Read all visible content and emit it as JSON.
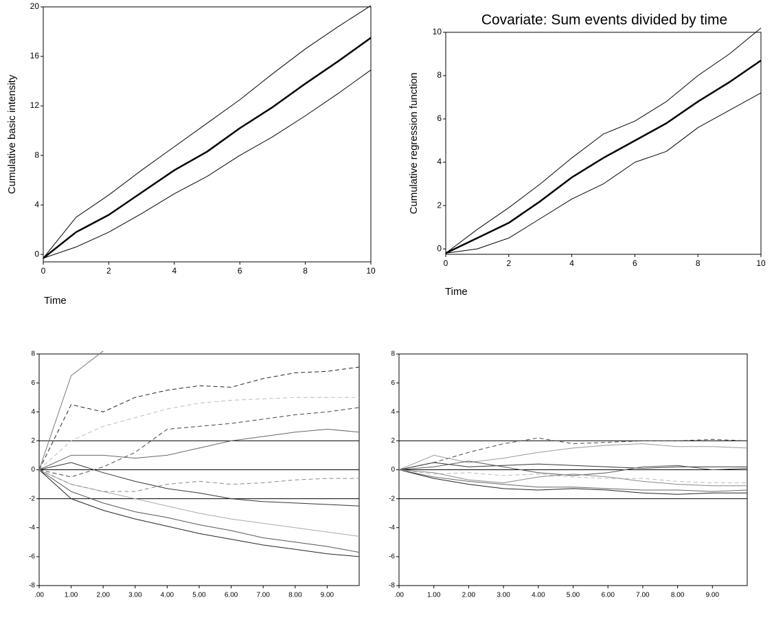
{
  "chart_data": [
    {
      "type": "line",
      "y_label": "Cumulative basic intensity",
      "x_label": "Time",
      "x": [
        0,
        1,
        2,
        3,
        4,
        5,
        6,
        7,
        8,
        9,
        10
      ],
      "xlim": [
        0,
        10
      ],
      "xticks": [
        0,
        2,
        4,
        6,
        8,
        10
      ],
      "ylim": [
        -0.6,
        20
      ],
      "yticks": [
        0,
        4,
        8,
        12,
        16,
        20
      ],
      "series": [
        {
          "color": "#000000",
          "width": 2.5,
          "values": [
            -0.3,
            1.8,
            3.2,
            5.0,
            6.8,
            8.3,
            10.2,
            11.9,
            13.8,
            15.6,
            17.5
          ]
        },
        {
          "color": "#000000",
          "width": 1,
          "values": [
            -0.3,
            3.0,
            4.8,
            6.8,
            8.7,
            10.6,
            12.5,
            14.6,
            16.6,
            18.4,
            20.1
          ]
        },
        {
          "color": "#000000",
          "width": 1,
          "values": [
            -0.3,
            0.6,
            1.8,
            3.3,
            4.9,
            6.3,
            8.0,
            9.5,
            11.2,
            13.0,
            14.9
          ]
        }
      ]
    },
    {
      "type": "line",
      "title": "Covariate: Sum events divided by time",
      "y_label": "Cumulative regression function",
      "x_label": "Time",
      "x": [
        0,
        1,
        2,
        3,
        4,
        5,
        6,
        7,
        8,
        9,
        10
      ],
      "xlim": [
        0,
        10
      ],
      "xticks": [
        0,
        2,
        4,
        6,
        8,
        10
      ],
      "ylim": [
        -0.25,
        10
      ],
      "yticks": [
        0,
        2,
        4,
        6,
        8,
        10
      ],
      "series": [
        {
          "color": "#000000",
          "width": 2.5,
          "values": [
            -0.2,
            0.5,
            1.2,
            2.2,
            3.3,
            4.2,
            5.0,
            5.8,
            6.8,
            7.7,
            8.7
          ]
        },
        {
          "color": "#000000",
          "width": 1,
          "values": [
            -0.2,
            0.9,
            1.9,
            3.0,
            4.2,
            5.3,
            5.9,
            6.8,
            8.0,
            9.0,
            10.2
          ]
        },
        {
          "color": "#000000",
          "width": 1,
          "values": [
            -0.2,
            0.0,
            0.5,
            1.4,
            2.3,
            3.0,
            4.0,
            4.5,
            5.6,
            6.4,
            7.2
          ]
        }
      ]
    },
    {
      "type": "line",
      "x": [
        0,
        1,
        2,
        3,
        4,
        5,
        6,
        7,
        8,
        9,
        10
      ],
      "xlim": [
        0,
        10
      ],
      "xticks": [
        {
          "value": 0,
          "label": ".00"
        },
        {
          "value": 1,
          "label": "1.00"
        },
        {
          "value": 2,
          "label": "2.00"
        },
        {
          "value": 3,
          "label": "3.00"
        },
        {
          "value": 4,
          "label": "4.00"
        },
        {
          "value": 5,
          "label": "5.00"
        },
        {
          "value": 6,
          "label": "6.00"
        },
        {
          "value": 7,
          "label": "7.00"
        },
        {
          "value": 8,
          "label": "8.00"
        },
        {
          "value": 9,
          "label": "9.00"
        }
      ],
      "ylim": [
        -8,
        8
      ],
      "yticks": [
        8,
        6,
        4,
        2,
        0,
        -2,
        -4,
        -6,
        -8
      ],
      "hlines": [
        2,
        0,
        -2
      ],
      "series": [
        {
          "color": "#222222",
          "width": 1,
          "values": [
            0,
            -2,
            -2.8,
            -3.4,
            -3.9,
            -4.4,
            -4.8,
            -5.2,
            -5.5,
            -5.8,
            -6.0
          ]
        },
        {
          "color": "#555555",
          "width": 1,
          "values": [
            0,
            -1.5,
            -2.3,
            -2.9,
            -3.3,
            -3.8,
            -4.2,
            -4.7,
            -5.0,
            -5.3,
            -5.7
          ]
        },
        {
          "color": "#aaaaaa",
          "width": 1,
          "values": [
            0,
            -1,
            -1.5,
            -2,
            -2.5,
            -3,
            -3.4,
            -3.7,
            -4,
            -4.3,
            -4.6
          ]
        },
        {
          "color": "#333333",
          "width": 1,
          "values": [
            0,
            0.5,
            -0.2,
            -0.8,
            -1.3,
            -1.6,
            -2.0,
            -2.2,
            -2.3,
            -2.4,
            -2.5
          ]
        },
        {
          "color": "#bbbbbb",
          "width": 1,
          "dash": true,
          "values": [
            0,
            2,
            3,
            3.6,
            4.2,
            4.6,
            4.8,
            4.9,
            5,
            5,
            5
          ]
        },
        {
          "color": "#222222",
          "width": 1,
          "dash": true,
          "values": [
            0,
            4.5,
            4,
            5,
            5.5,
            5.8,
            5.7,
            6.3,
            6.7,
            6.8,
            7.1
          ]
        },
        {
          "color": "#666666",
          "width": 1,
          "values": [
            0,
            1,
            1,
            0.8,
            1,
            1.5,
            2,
            2.3,
            2.6,
            2.8,
            2.6
          ]
        },
        {
          "color": "#777777",
          "width": 1,
          "values": [
            0,
            6.5,
            8.2,
            null,
            null,
            null,
            null,
            null,
            null,
            null,
            null
          ]
        },
        {
          "color": "#444444",
          "width": 1,
          "dash": true,
          "values": [
            0,
            -0.5,
            0.2,
            1.2,
            2.8,
            3.0,
            3.2,
            3.5,
            3.8,
            4.0,
            4.3
          ]
        },
        {
          "color": "#888888",
          "width": 1,
          "dash": true,
          "values": [
            0,
            -1,
            -1.5,
            -1.5,
            -1.0,
            -0.8,
            -1.0,
            -0.9,
            -0.7,
            -0.6,
            -0.6
          ]
        }
      ]
    },
    {
      "type": "line",
      "x": [
        0,
        1,
        2,
        3,
        4,
        5,
        6,
        7,
        8,
        9,
        10
      ],
      "xlim": [
        0,
        10
      ],
      "xticks": [
        {
          "value": 0,
          "label": ".00"
        },
        {
          "value": 1,
          "label": "1.00"
        },
        {
          "value": 2,
          "label": "2.00"
        },
        {
          "value": 3,
          "label": "3.00"
        },
        {
          "value": 4,
          "label": "4.00"
        },
        {
          "value": 5,
          "label": "5.00"
        },
        {
          "value": 6,
          "label": "6.00"
        },
        {
          "value": 7,
          "label": "7.00"
        },
        {
          "value": 8,
          "label": "8.00"
        },
        {
          "value": 9,
          "label": "9.00"
        }
      ],
      "ylim": [
        -8,
        8
      ],
      "yticks": [
        8,
        6,
        4,
        2,
        0,
        -2,
        -4,
        -6,
        -8
      ],
      "hlines": [
        2,
        0,
        -2
      ],
      "series": [
        {
          "color": "#222222",
          "width": 1,
          "values": [
            0,
            -0.6,
            -1.0,
            -1.3,
            -1.4,
            -1.3,
            -1.4,
            -1.6,
            -1.7,
            -1.6,
            -1.6
          ]
        },
        {
          "color": "#666666",
          "width": 1,
          "values": [
            0,
            -0.5,
            -0.8,
            -1.0,
            -1.2,
            -1.2,
            -1.3,
            -1.4,
            -1.4,
            -1.5,
            -1.4
          ]
        },
        {
          "color": "#444444",
          "width": 1,
          "dash": true,
          "values": [
            0,
            0.5,
            1.2,
            1.8,
            2.2,
            1.8,
            1.9,
            2.0,
            2.0,
            2.1,
            2.0
          ]
        },
        {
          "color": "#999999",
          "width": 1,
          "values": [
            0,
            1.0,
            0.5,
            0.8,
            1.2,
            1.5,
            1.7,
            1.8,
            1.6,
            1.6,
            1.5
          ]
        },
        {
          "color": "#333333",
          "width": 1,
          "values": [
            0,
            0.5,
            0.2,
            0.3,
            0.4,
            0.3,
            0.2,
            0.1,
            0.2,
            0.2,
            0.2
          ]
        },
        {
          "color": "#bbbbbb",
          "width": 1,
          "dash": true,
          "values": [
            0,
            -0.3,
            -0.2,
            -0.4,
            -0.3,
            -0.5,
            -0.6,
            -0.6,
            -0.8,
            -0.9,
            -0.9
          ]
        },
        {
          "color": "#555555",
          "width": 1,
          "values": [
            0,
            0.2,
            0.6,
            0.2,
            -0.2,
            -0.4,
            -0.2,
            0.2,
            0.3,
            0.0,
            0.1
          ]
        },
        {
          "color": "#888888",
          "width": 1,
          "values": [
            0,
            -0.2,
            -0.7,
            -0.9,
            -0.5,
            -0.3,
            -0.5,
            -0.8,
            -1.0,
            -1.1,
            -1.1
          ]
        }
      ]
    }
  ]
}
